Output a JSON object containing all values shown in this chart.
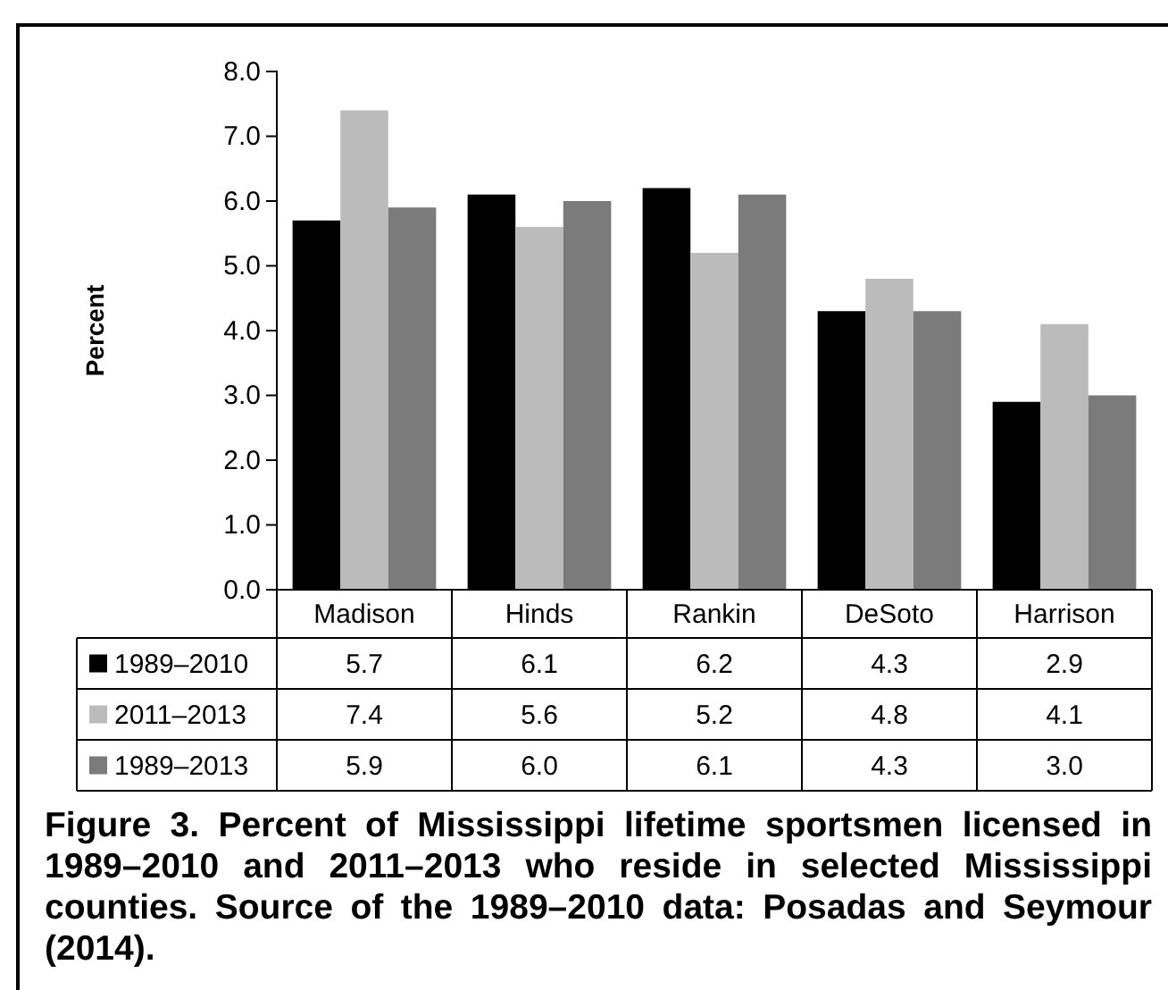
{
  "chart_data": {
    "type": "bar",
    "ylabel": "Percent",
    "categories": [
      "Madison",
      "Hinds",
      "Rankin",
      "DeSoto",
      "Harrison"
    ],
    "series": [
      {
        "name": "1989–2010",
        "color": "#000000",
        "values": [
          5.7,
          6.1,
          6.2,
          4.3,
          2.9
        ],
        "value_labels": [
          "5.7",
          "6.1",
          "6.2",
          "4.3",
          "2.9"
        ]
      },
      {
        "name": "2011–2013",
        "color": "#bbbbbb",
        "values": [
          7.4,
          5.6,
          5.2,
          4.8,
          4.1
        ],
        "value_labels": [
          "7.4",
          "5.6",
          "5.2",
          "4.8",
          "4.1"
        ]
      },
      {
        "name": "1989–2013",
        "color": "#7b7b7b",
        "values": [
          5.9,
          6.0,
          6.1,
          4.3,
          3.0
        ],
        "value_labels": [
          "5.9",
          "6.0",
          "6.1",
          "4.3",
          "3.0"
        ]
      }
    ],
    "ylim": [
      0,
      8
    ],
    "yticks": [
      {
        "value": 0,
        "label": "0.0"
      },
      {
        "value": 1,
        "label": "1.0"
      },
      {
        "value": 2,
        "label": "2.0"
      },
      {
        "value": 3,
        "label": "3.0"
      },
      {
        "value": 4,
        "label": "4.0"
      },
      {
        "value": 5,
        "label": "5.0"
      },
      {
        "value": 6,
        "label": "6.0"
      },
      {
        "value": 7,
        "label": "7.0"
      },
      {
        "value": 8,
        "label": "8.0"
      }
    ],
    "grid": false,
    "legend": "bottom left",
    "annotations": [
      "Figure 3. Percent of Mississippi lifetime sportsmen licensed in 1989–2010 and 2011–2013 who reside in selected Mississippi counties. Source of the 1989–2010 data: Posadas and Seymour (2014)."
    ]
  }
}
